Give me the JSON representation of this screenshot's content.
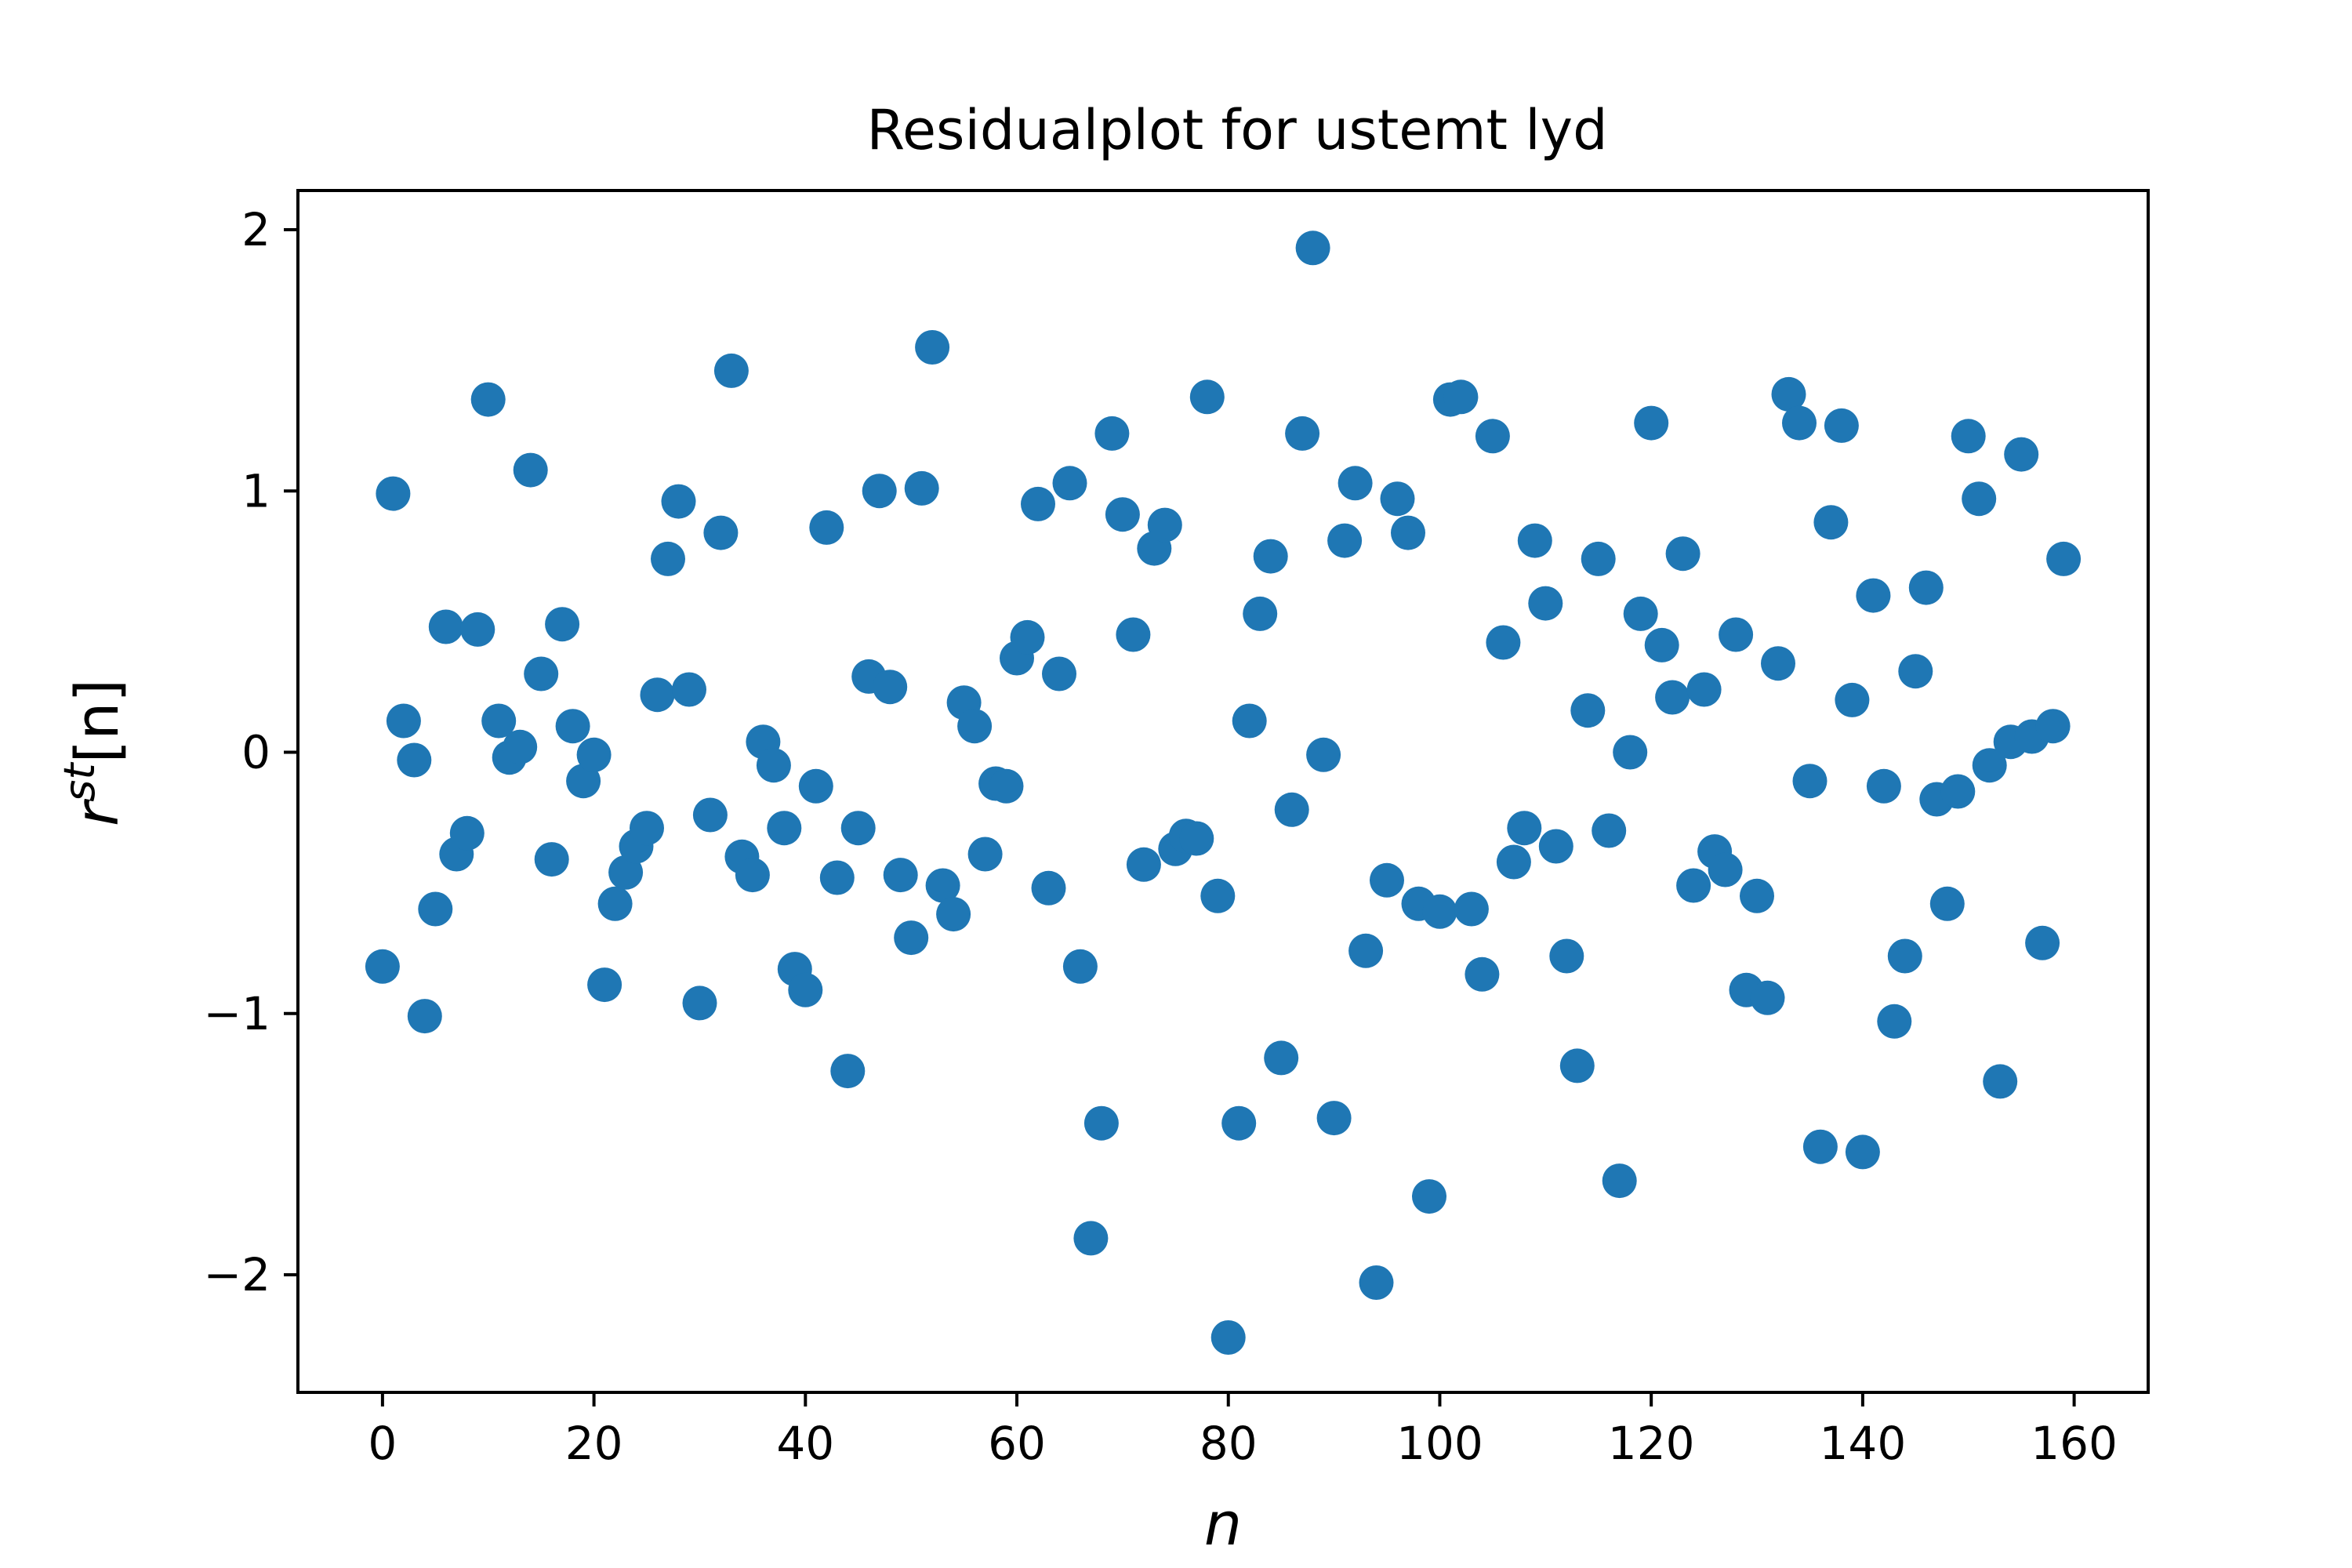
{
  "chart_data": {
    "type": "scatter",
    "title": "Residualplot for ustemt lyd",
    "xlabel": "n",
    "ylabel": {
      "base": "r",
      "superscript": "st",
      "bracket": "[n]"
    },
    "xlim": [
      -8,
      167
    ],
    "ylim": [
      -2.45,
      2.15
    ],
    "xticks": [
      0,
      20,
      40,
      60,
      80,
      100,
      120,
      140,
      160
    ],
    "xtick_labels": [
      "0",
      "20",
      "40",
      "60",
      "80",
      "100",
      "120",
      "140",
      "160"
    ],
    "yticks": [
      -2,
      -1,
      0,
      1,
      2
    ],
    "ytick_labels": [
      "−2",
      "−1",
      "0",
      "1",
      "2"
    ],
    "grid": false,
    "marker_color": "#1f77b4",
    "x": [
      0,
      1,
      2,
      3,
      4,
      5,
      6,
      7,
      8,
      9,
      10,
      11,
      12,
      13,
      14,
      15,
      16,
      17,
      18,
      19,
      20,
      21,
      22,
      23,
      24,
      25,
      26,
      27,
      28,
      29,
      30,
      31,
      32,
      33,
      34,
      35,
      36,
      37,
      38,
      39,
      40,
      41,
      42,
      43,
      44,
      45,
      46,
      47,
      48,
      49,
      50,
      51,
      52,
      53,
      54,
      55,
      56,
      57,
      58,
      59,
      60,
      61,
      62,
      63,
      64,
      65,
      66,
      67,
      68,
      69,
      70,
      71,
      72,
      73,
      74,
      75,
      76,
      77,
      78,
      79,
      80,
      81,
      82,
      83,
      84,
      85,
      86,
      87,
      88,
      89,
      90,
      91,
      92,
      93,
      94,
      95,
      96,
      97,
      98,
      99,
      100,
      101,
      102,
      103,
      104,
      105,
      106,
      107,
      108,
      109,
      110,
      111,
      112,
      113,
      114,
      115,
      116,
      117,
      118,
      119,
      120,
      121,
      122,
      123,
      124,
      125,
      126,
      127,
      128,
      129,
      130,
      131,
      132,
      133,
      134,
      135,
      136,
      137,
      138,
      139,
      140,
      141,
      142,
      143,
      144,
      145,
      146,
      147,
      148,
      149,
      150,
      151,
      152,
      153,
      154,
      155,
      156,
      157,
      158,
      159
    ],
    "y": [
      -0.82,
      0.99,
      0.12,
      -0.03,
      -1.01,
      -0.6,
      0.48,
      -0.39,
      -0.31,
      0.47,
      1.35,
      0.12,
      -0.02,
      0.02,
      1.08,
      0.3,
      -0.41,
      0.49,
      0.1,
      -0.11,
      -0.01,
      -0.89,
      -0.58,
      -0.46,
      -0.36,
      -0.29,
      0.22,
      0.74,
      0.96,
      0.24,
      -0.96,
      -0.24,
      0.84,
      1.46,
      -0.4,
      -0.47,
      0.04,
      -0.05,
      -0.29,
      -0.83,
      -0.91,
      -0.13,
      0.86,
      -0.48,
      -1.22,
      -0.29,
      0.29,
      1.0,
      0.25,
      -0.47,
      -0.71,
      1.01,
      1.55,
      -0.51,
      -0.62,
      0.19,
      0.1,
      -0.39,
      -0.12,
      -0.13,
      0.36,
      0.44,
      0.95,
      -0.52,
      0.3,
      1.03,
      -0.82,
      -1.86,
      -1.42,
      1.22,
      0.91,
      0.45,
      -0.43,
      0.78,
      0.87,
      -0.37,
      -0.32,
      -0.33,
      1.36,
      -0.55,
      -2.24,
      -1.42,
      0.12,
      0.53,
      0.75,
      -1.17,
      -0.22,
      1.22,
      1.93,
      -0.01,
      -1.4,
      0.81,
      1.03,
      -0.76,
      -2.03,
      -0.49,
      0.97,
      0.84,
      -0.58,
      -1.7,
      -0.61,
      1.35,
      1.36,
      -0.6,
      -0.85,
      1.21,
      0.42,
      -0.42,
      -0.29,
      0.81,
      0.57,
      -0.36,
      -0.78,
      -1.2,
      0.16,
      0.74,
      -0.3,
      -1.64,
      0.0,
      0.53,
      1.26,
      0.41,
      0.21,
      0.76,
      -0.51,
      0.24,
      -0.38,
      -0.45,
      0.45,
      -0.91,
      -0.55,
      -0.94,
      0.34,
      1.37,
      1.26,
      -0.11,
      -1.51,
      0.88,
      1.25,
      0.2,
      -1.53,
      0.6,
      -0.13,
      -1.03,
      -0.78,
      0.31,
      0.63,
      -0.18,
      -0.58,
      -0.15,
      1.21,
      0.97,
      -0.05,
      -1.26,
      0.04,
      1.14,
      0.06,
      -0.73,
      0.1,
      0.74
    ]
  }
}
